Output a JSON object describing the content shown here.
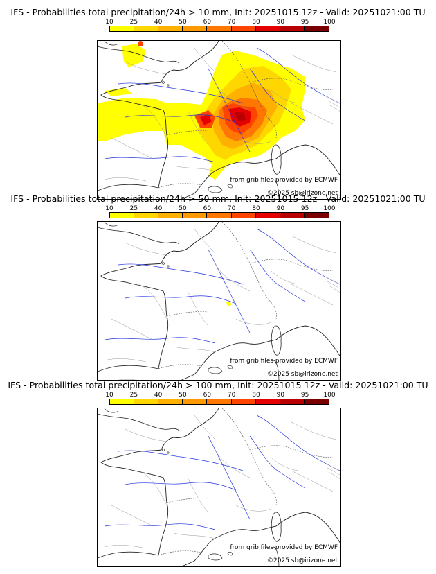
{
  "colorbar": {
    "ticks": [
      "10",
      "25",
      "40",
      "50",
      "60",
      "70",
      "80",
      "90",
      "95",
      "100"
    ],
    "colors": [
      "#ffff00",
      "#ffd700",
      "#ffb000",
      "#ff9900",
      "#ff7700",
      "#ff4400",
      "#e40000",
      "#b80000",
      "#7a0000"
    ]
  },
  "panels": [
    {
      "title": "IFS - Probabilities total precipitation/24h > 10 mm, Init: 20251015 12z - Valid: 20251021:00 TU",
      "credit1": "from grib files provided by ECMWF",
      "credit2": "©2025 sb@irizone.net"
    },
    {
      "title": "IFS - Probabilities total precipitation/24h > 50 mm, Init: 20251015 12z - Valid: 20251021:00 TU",
      "credit1": "from grib files provided by ECMWF",
      "credit2": "©2025 sb@irizone.net"
    },
    {
      "title": "IFS - Probabilities total precipitation/24h > 100 mm, Init: 20251015 12z - Valid: 20251021:00 TU",
      "credit1": "from grib files provided by ECMWF",
      "credit2": "©2025 sb@irizone.net"
    }
  ]
}
